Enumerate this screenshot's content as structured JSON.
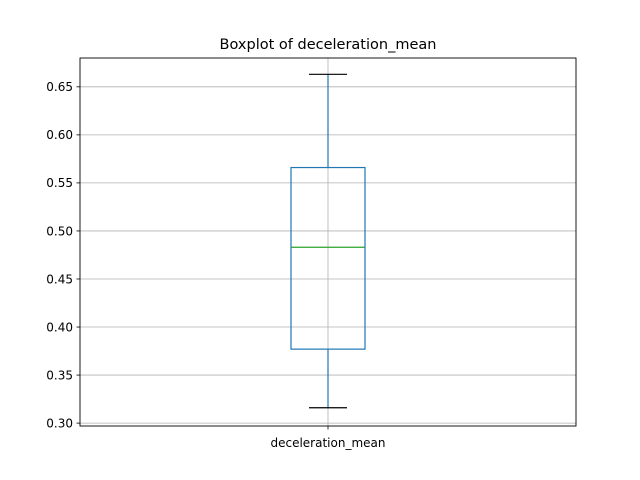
{
  "chart_data": {
    "type": "box",
    "title": "Boxplot of deceleration_mean",
    "xlabel": "",
    "ylabel": "",
    "categories": [
      "deceleration_mean"
    ],
    "boxes": [
      {
        "name": "deceleration_mean",
        "whisker_low": 0.316,
        "q1": 0.377,
        "median": 0.483,
        "q3": 0.566,
        "whisker_high": 0.663
      }
    ],
    "ylim": [
      0.297,
      0.68
    ],
    "yticks": [
      0.3,
      0.35,
      0.4,
      0.45,
      0.5,
      0.55,
      0.6,
      0.65
    ],
    "ytick_labels": [
      "0.30",
      "0.35",
      "0.40",
      "0.45",
      "0.50",
      "0.55",
      "0.60",
      "0.65"
    ],
    "grid": true,
    "colors": {
      "box": "#1f77b4",
      "median": "#2ca02c",
      "whisker": "#1f77b4",
      "cap": "#000000",
      "grid": "#b0b0b0",
      "axes": "#000000"
    }
  }
}
